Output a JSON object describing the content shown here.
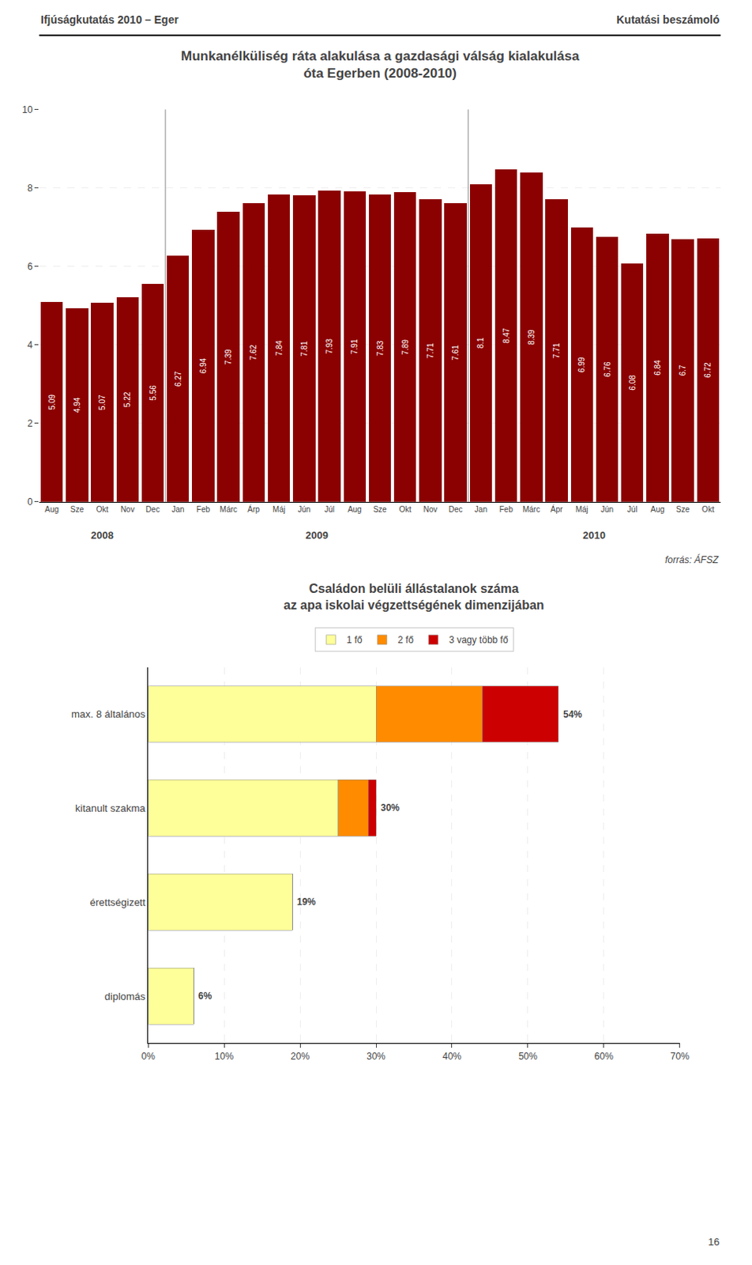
{
  "annotations": [
    {
      "text": "Ifjúságkutatás 2010 – Eger"
    },
    {
      "text": "Kutatási beszámoló"
    },
    {
      "text": "16"
    }
  ],
  "chart_data": [
    {
      "type": "bar",
      "title": [
        "Munkanélküliség ráta alakulása a gazdasági válság kialakulása",
        "óta Egerben (2008-2010)"
      ],
      "categories": [
        "Aug",
        "Sze",
        "Okt",
        "Nov",
        "Dec",
        "Jan",
        "Feb",
        "Márc",
        "Árp",
        "Máj",
        "Jún",
        "Júl",
        "Aug",
        "Sze",
        "Okt",
        "Nov",
        "Dec",
        "Jan",
        "Feb",
        "Márc",
        "Ápr",
        "Máj",
        "Jún",
        "Júl",
        "Aug",
        "Sze",
        "Okt"
      ],
      "values": [
        5.09,
        4.94,
        5.07,
        5.22,
        5.56,
        6.27,
        6.94,
        7.39,
        7.62,
        7.84,
        7.81,
        7.93,
        7.91,
        7.83,
        7.89,
        7.71,
        7.61,
        8.1,
        8.47,
        8.39,
        7.71,
        6.99,
        6.76,
        6.08,
        6.84,
        6.7,
        6.72
      ],
      "color": "#8B0000",
      "ylim": [
        0,
        10
      ],
      "yticks": [
        0,
        2,
        4,
        6,
        8,
        10
      ],
      "grid": true,
      "data_labels": true,
      "annotations": [
        {
          "text": "2008",
          "x": [
            0,
            4
          ]
        },
        {
          "text": "2009",
          "x": [
            5,
            16
          ]
        },
        {
          "text": "2010",
          "x": [
            17,
            26
          ]
        },
        {
          "text": "forrás: ÁFSZ"
        }
      ]
    },
    {
      "type": "bar",
      "orientation": "horizontal",
      "stacked": true,
      "title": [
        "Családon belüli állástalanok száma",
        "az apa iskolai végzettségének dimenzijában"
      ],
      "categories": [
        "max. 8 általános",
        "kitanult szakma",
        "érettségizett",
        "diplomás"
      ],
      "series": [
        {
          "name": "1 fő",
          "color": "#ffff99",
          "values": [
            30,
            25,
            19,
            6
          ]
        },
        {
          "name": "2 fő",
          "color": "#ff8c00",
          "values": [
            14,
            4,
            0,
            0
          ]
        },
        {
          "name": "3 vagy több fő",
          "color": "#cc0000",
          "values": [
            10,
            1,
            0,
            0
          ]
        }
      ],
      "totals": [
        54,
        30,
        19,
        6
      ],
      "total_labels": [
        "54%",
        "30%",
        "19%",
        "6%"
      ],
      "xlim": [
        0,
        70
      ],
      "xticks": [
        {
          "value": 0,
          "label": "0%"
        },
        {
          "value": 10,
          "label": "10%"
        },
        {
          "value": 20,
          "label": "20%"
        },
        {
          "value": 30,
          "label": "30%"
        },
        {
          "value": 40,
          "label": "40%"
        },
        {
          "value": 50,
          "label": "50%"
        },
        {
          "value": 60,
          "label": "60%"
        },
        {
          "value": 70,
          "label": "70%"
        }
      ],
      "grid": true,
      "legend": "top"
    }
  ]
}
